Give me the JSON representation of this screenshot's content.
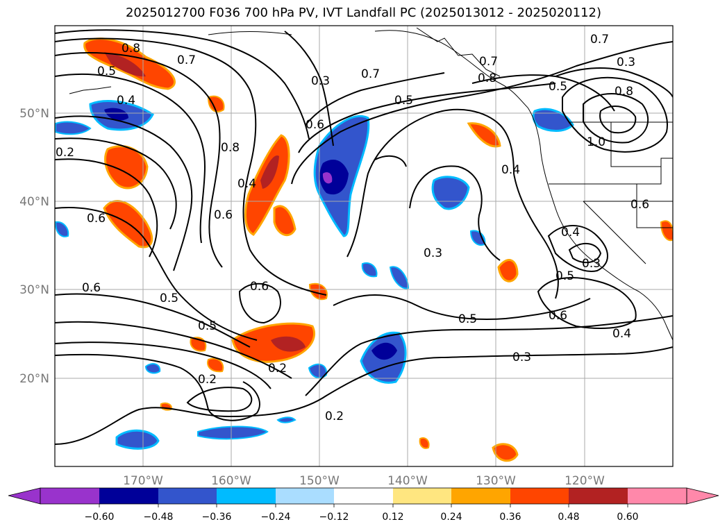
{
  "title": "2025012700 F036 700 hPa PV, IVT Landfall PC (2025013012 - 2025020112)",
  "map": {
    "lon_ticks": [
      "170°W",
      "160°W",
      "150°W",
      "140°W",
      "130°W",
      "120°W"
    ],
    "lat_ticks": [
      "50°N",
      "40°N",
      "30°N",
      "20°N"
    ],
    "grid": true,
    "contour_labels": [
      "0.8",
      "0.5",
      "0.4",
      "0.7",
      "0.3",
      "0.7",
      "0.5",
      "0.6",
      "0.8",
      "0.4",
      "0.6",
      "0.2",
      "0.6",
      "0.6",
      "0.5",
      "0.6",
      "0.5",
      "0.2",
      "0.2",
      "0.2",
      "0.3",
      "0.5",
      "0.3",
      "0.4",
      "0.6",
      "0.5",
      "0.4",
      "0.6",
      "0.3",
      "0.4",
      "0.7",
      "0.8",
      "1.0",
      "0.5",
      "0.8",
      "0.7",
      "0.3"
    ]
  },
  "colorbar": {
    "tick_labels": [
      "−0.60",
      "−0.48",
      "−0.36",
      "−0.24",
      "−0.12",
      "0.12",
      "0.24",
      "0.36",
      "0.48",
      "0.60"
    ],
    "colors": [
      "#9933cc",
      "#000099",
      "#3355cc",
      "#00bbff",
      "#aaddff",
      "#ffffff",
      "#ffe680",
      "#ffa500",
      "#ff4500",
      "#b22222",
      "#ff88aa"
    ]
  },
  "colors": {
    "contour": "#000000",
    "grid": "#aaaaaa",
    "coast": "#000000"
  }
}
